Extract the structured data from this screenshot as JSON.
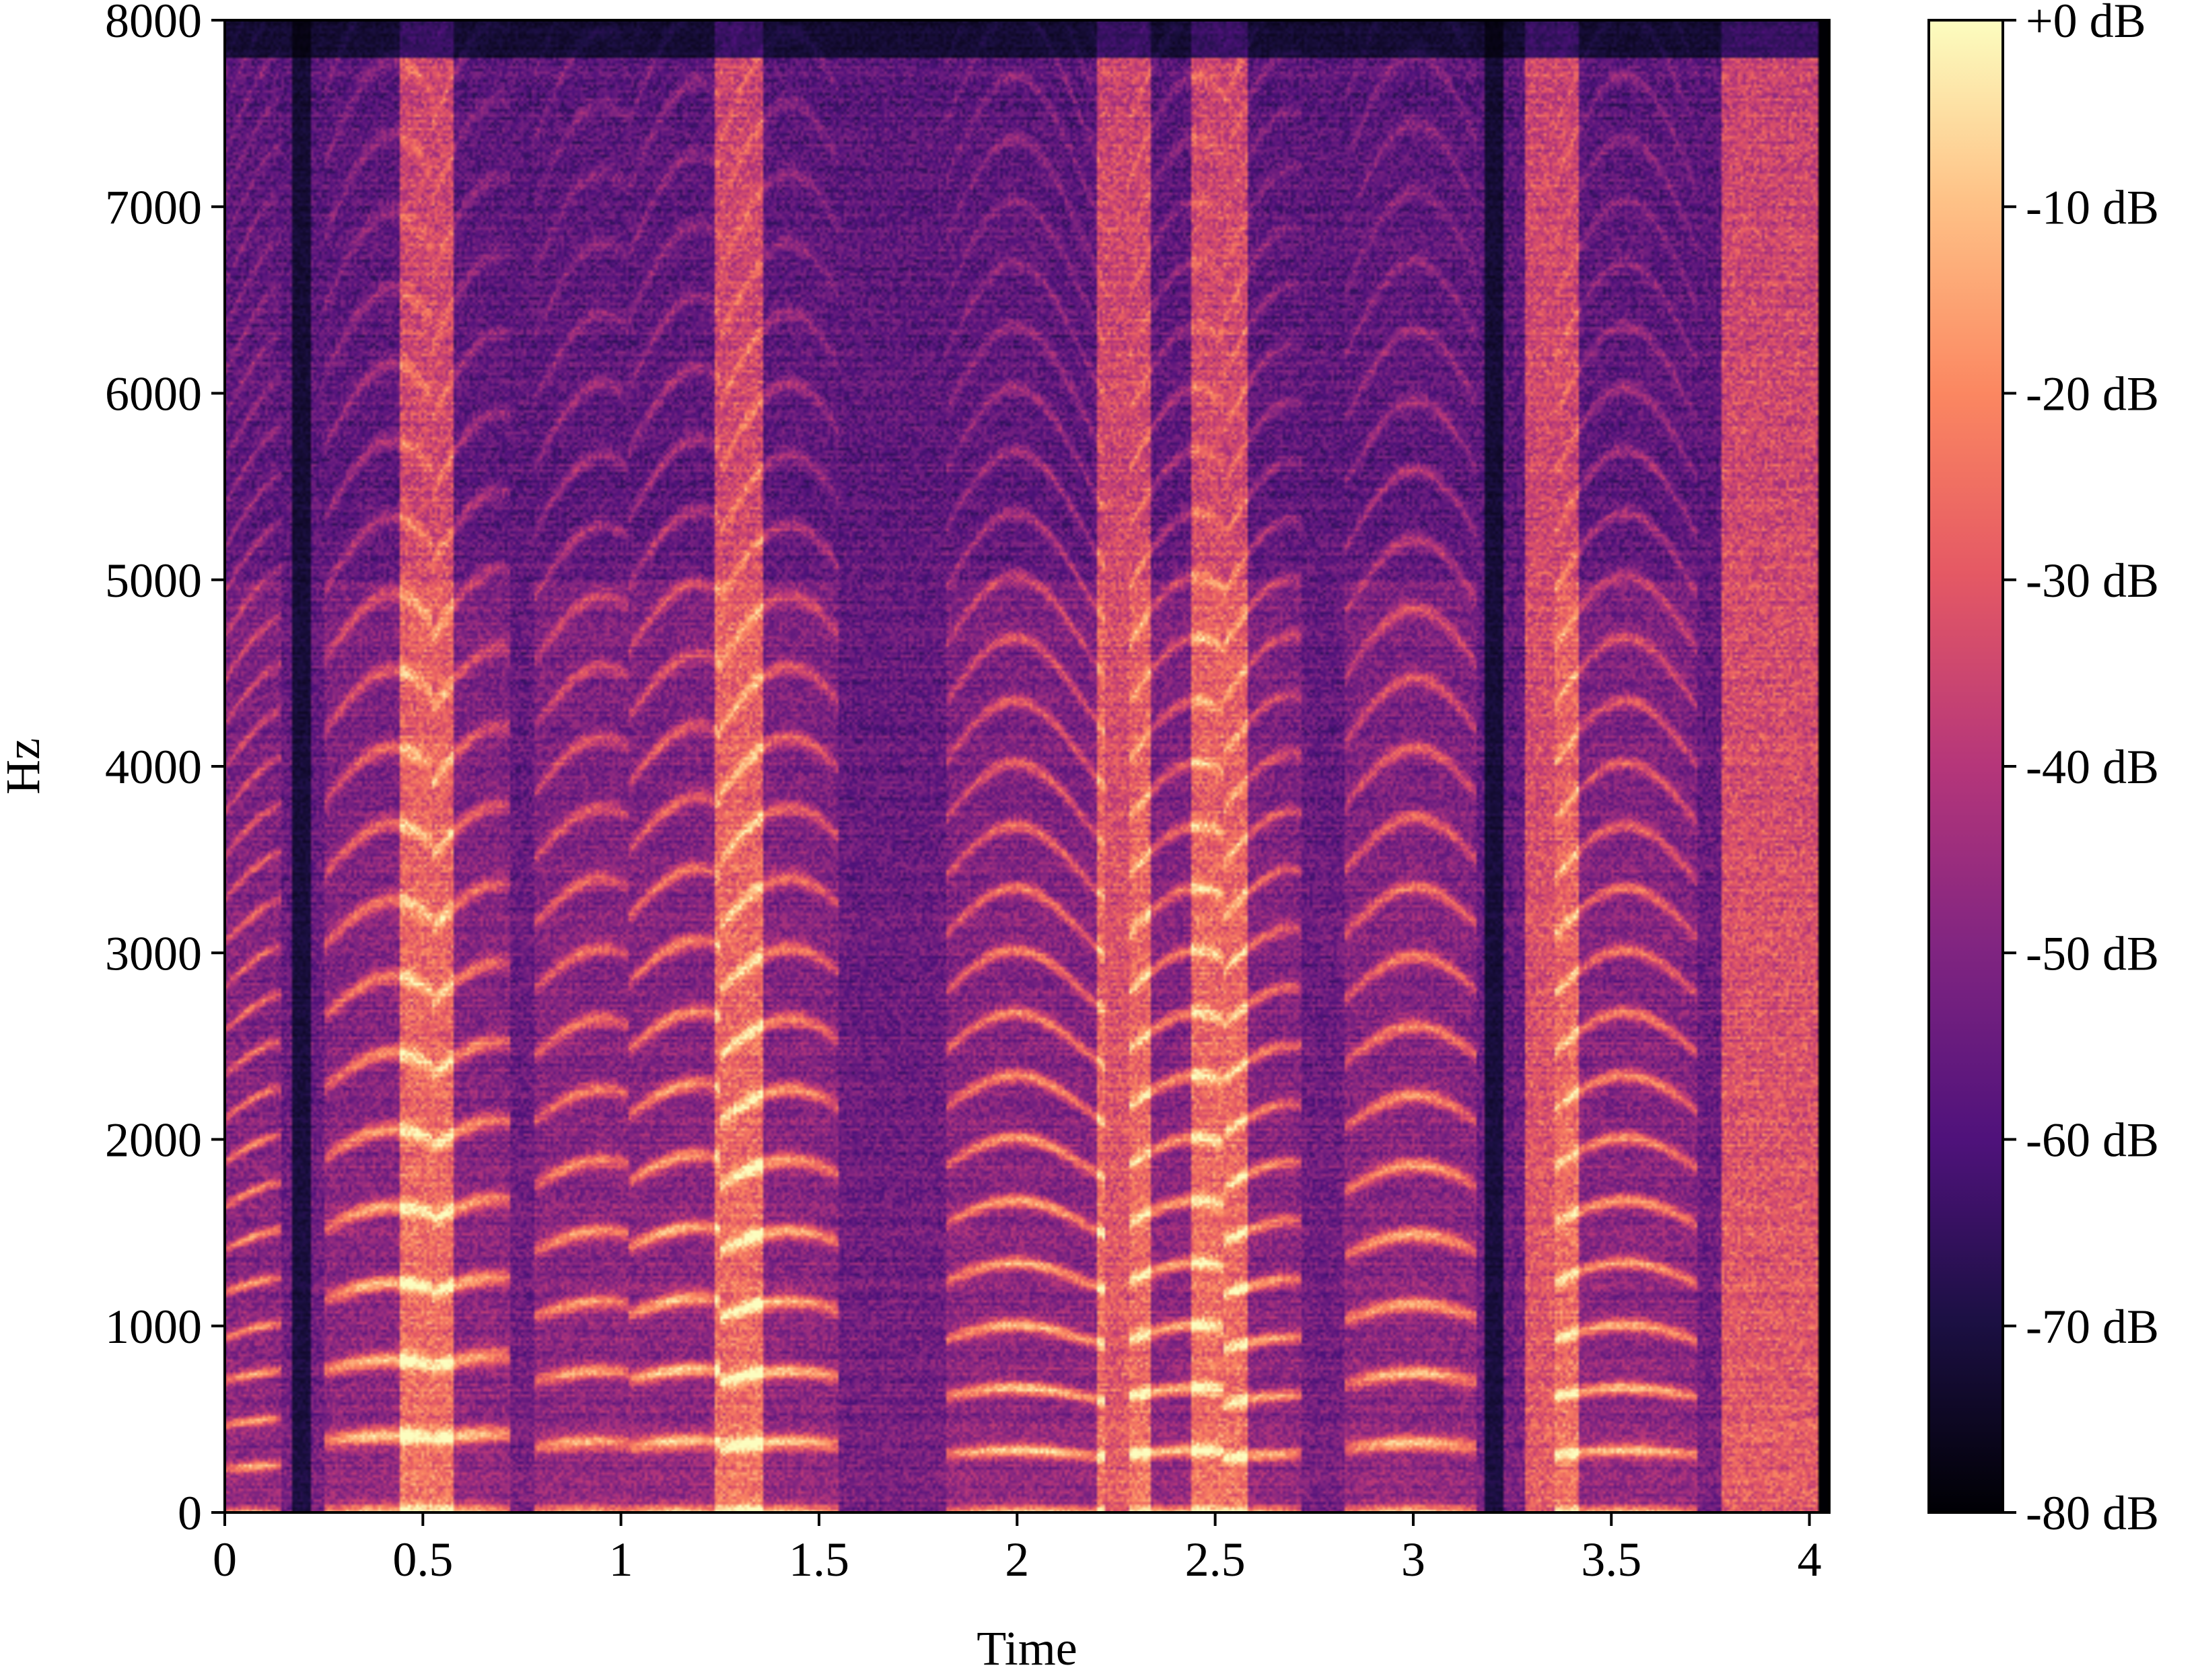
{
  "chart_data": {
    "type": "heatmap",
    "subtype": "spectrogram",
    "colormap": "magma",
    "xlabel": "Time",
    "ylabel": "Hz",
    "xlim": [
      0,
      4.05
    ],
    "ylim": [
      0,
      8000
    ],
    "x_ticks": [
      0,
      0.5,
      1,
      1.5,
      2,
      2.5,
      3,
      3.5,
      4
    ],
    "x_tick_labels": [
      "0",
      "0.5",
      "1",
      "1.5",
      "2",
      "2.5",
      "3",
      "3.5",
      "4"
    ],
    "y_ticks": [
      0,
      1000,
      2000,
      3000,
      4000,
      5000,
      6000,
      7000,
      8000
    ],
    "y_tick_labels": [
      "0",
      "1000",
      "2000",
      "3000",
      "4000",
      "5000",
      "6000",
      "7000",
      "8000"
    ],
    "colorbar": {
      "range_db": [
        -80,
        0
      ],
      "ticks": [
        0,
        -10,
        -20,
        -30,
        -40,
        -50,
        -60,
        -70,
        -80
      ],
      "tick_labels": [
        "+0 dB",
        "-10 dB",
        "-20 dB",
        "-30 dB",
        "-40 dB",
        "-50 dB",
        "-60 dB",
        "-70 dB",
        "-80 dB"
      ]
    },
    "segments": [
      {
        "start": 0.0,
        "end": 0.14,
        "f0": 235,
        "strength": 0.85
      },
      {
        "start": 0.25,
        "end": 0.52,
        "f0": 380,
        "strength": 0.95
      },
      {
        "start": 0.52,
        "end": 0.72,
        "f0": 390,
        "strength": 0.9
      },
      {
        "start": 0.78,
        "end": 1.02,
        "f0": 350,
        "strength": 0.85
      },
      {
        "start": 1.02,
        "end": 1.25,
        "f0": 355,
        "strength": 1.0
      },
      {
        "start": 1.25,
        "end": 1.55,
        "f0": 350,
        "strength": 0.95
      },
      {
        "start": 1.82,
        "end": 2.22,
        "f0": 310,
        "strength": 0.95
      },
      {
        "start": 2.28,
        "end": 2.52,
        "f0": 310,
        "strength": 0.9
      },
      {
        "start": 2.52,
        "end": 2.72,
        "f0": 290,
        "strength": 0.85
      },
      {
        "start": 2.83,
        "end": 3.16,
        "f0": 345,
        "strength": 0.95
      },
      {
        "start": 3.36,
        "end": 3.72,
        "f0": 310,
        "strength": 0.9
      }
    ],
    "silences": [
      {
        "start": 0.17,
        "end": 0.22
      },
      {
        "start": 3.18,
        "end": 3.23
      }
    ],
    "fricatives": [
      {
        "start": 0.46,
        "end": 0.56
      },
      {
        "start": 1.26,
        "end": 1.34
      },
      {
        "start": 2.22,
        "end": 2.32
      },
      {
        "start": 2.46,
        "end": 2.56
      },
      {
        "start": 3.3,
        "end": 3.4
      },
      {
        "start": 3.8,
        "end": 4.02
      }
    ]
  }
}
